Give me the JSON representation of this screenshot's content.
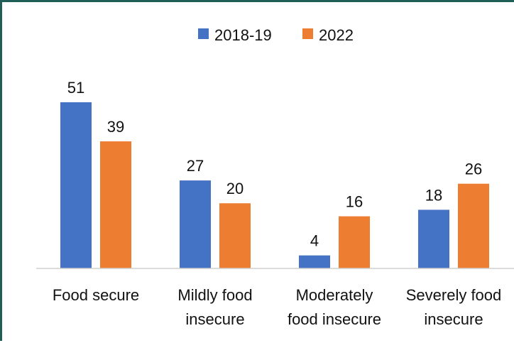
{
  "chart_data": {
    "type": "bar",
    "categories": [
      [
        "Food secure"
      ],
      [
        "Mildly food",
        "insecure"
      ],
      [
        "Moderately",
        "food insecure"
      ],
      [
        "Severely food",
        "insecure"
      ]
    ],
    "series": [
      {
        "name": "2018-19",
        "values": [
          51,
          27,
          4,
          18
        ]
      },
      {
        "name": "2022",
        "values": [
          39,
          20,
          16,
          26
        ]
      }
    ],
    "colors": [
      "#4472C4",
      "#ED7D31"
    ],
    "ylim": [
      0,
      51
    ],
    "grid": false,
    "legend_position": "top"
  }
}
